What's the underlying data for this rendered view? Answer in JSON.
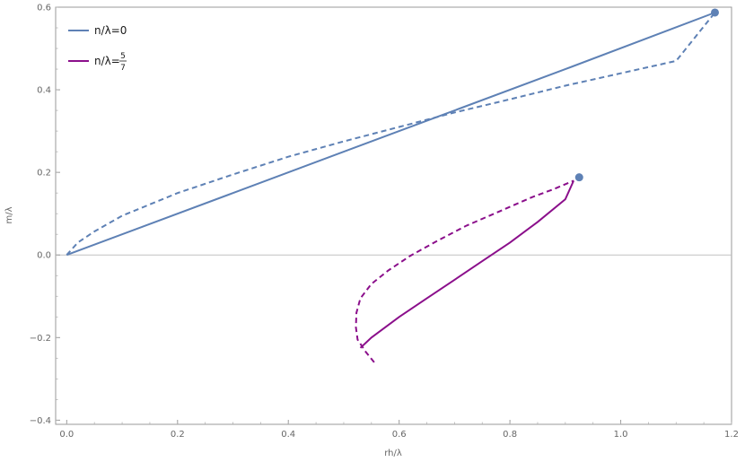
{
  "chart_data": {
    "type": "line",
    "xlabel": "rh/λ",
    "ylabel": "m/λ",
    "xlim": [
      -0.02,
      1.2
    ],
    "ylim": [
      -0.41,
      0.6
    ],
    "grid": false,
    "legend_position": "top-left",
    "x_ticks": [
      0.0,
      0.2,
      0.4,
      0.6,
      0.8,
      1.0,
      1.2
    ],
    "x_tick_labels": [
      "0.0",
      "0.2",
      "0.4",
      "0.6",
      "0.8",
      "1.0",
      "1.2"
    ],
    "y_ticks": [
      -0.4,
      -0.2,
      0.0,
      0.2,
      0.4,
      0.6
    ],
    "y_tick_labels": [
      "−0.4",
      "−0.2",
      "0.0",
      "0.2",
      "0.4",
      "0.6"
    ],
    "series": [
      {
        "name": "n/λ=0",
        "color": "#5e81b5",
        "solid": [
          [
            0.0,
            0.0
          ],
          [
            0.3,
            0.15
          ],
          [
            0.6,
            0.3
          ],
          [
            0.9,
            0.45
          ],
          [
            1.17,
            0.587
          ]
        ],
        "dashed": [
          [
            0.0,
            0.0
          ],
          [
            0.02,
            0.03
          ],
          [
            0.05,
            0.057
          ],
          [
            0.1,
            0.095
          ],
          [
            0.2,
            0.15
          ],
          [
            0.3,
            0.195
          ],
          [
            0.4,
            0.238
          ],
          [
            0.5,
            0.275
          ],
          [
            0.6,
            0.31
          ],
          [
            0.7,
            0.345
          ],
          [
            0.8,
            0.377
          ],
          [
            0.9,
            0.41
          ],
          [
            1.0,
            0.44
          ],
          [
            1.1,
            0.47
          ],
          [
            1.17,
            0.587
          ]
        ]
      },
      {
        "name_prefix": "n/λ=",
        "name_num": "5",
        "name_den": "7",
        "color": "#8b0f8b",
        "solid": [
          [
            0.53,
            -0.225
          ],
          [
            0.55,
            -0.2
          ],
          [
            0.6,
            -0.15
          ],
          [
            0.65,
            -0.105
          ],
          [
            0.7,
            -0.06
          ],
          [
            0.75,
            -0.015
          ],
          [
            0.8,
            0.03
          ],
          [
            0.85,
            0.08
          ],
          [
            0.9,
            0.135
          ],
          [
            0.915,
            0.18
          ]
        ],
        "dashed": [
          [
            0.555,
            -0.26
          ],
          [
            0.54,
            -0.235
          ],
          [
            0.525,
            -0.205
          ],
          [
            0.522,
            -0.175
          ],
          [
            0.523,
            -0.14
          ],
          [
            0.53,
            -0.105
          ],
          [
            0.55,
            -0.07
          ],
          [
            0.58,
            -0.038
          ],
          [
            0.62,
            -0.002
          ],
          [
            0.67,
            0.035
          ],
          [
            0.72,
            0.07
          ],
          [
            0.78,
            0.105
          ],
          [
            0.84,
            0.14
          ],
          [
            0.88,
            0.16
          ],
          [
            0.915,
            0.18
          ]
        ]
      }
    ],
    "markers": [
      {
        "x": 1.17,
        "y": 0.587,
        "color": "#5e81b5"
      },
      {
        "x": 0.925,
        "y": 0.188,
        "color": "#5e81b5"
      }
    ]
  }
}
